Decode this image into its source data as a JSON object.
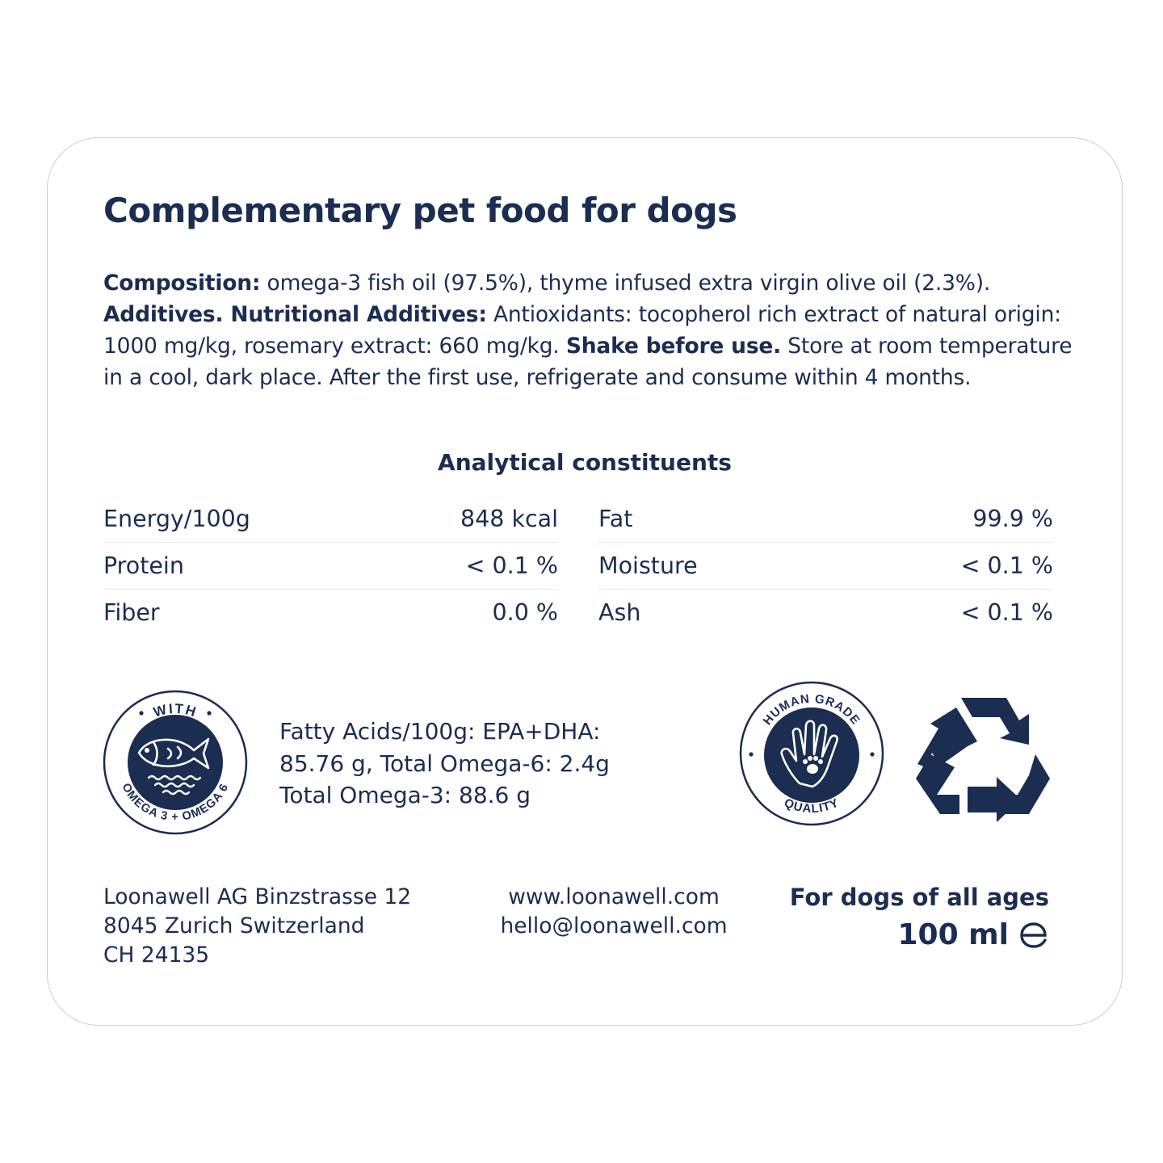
{
  "title": "Complementary pet food for dogs",
  "composition": {
    "label": "Composition:",
    "text": " omega-3 fish oil (97.5%), thyme infused extra virgin olive oil (2.3%).",
    "additives_label": "Additives. Nutritional Additives:",
    "additives_text": " Antioxidants: tocopherol rich extract  of natural origin: 1000 mg/kg, rosemary extract: 660 mg/kg. ",
    "shake_label": "Shake before use.",
    "storage_text": " Store at room temperature in a cool, dark place. After the first use, refrigerate and consume within 4 months."
  },
  "analytical": {
    "title": "Analytical constituents",
    "left": [
      {
        "name": "Energy/100g",
        "value": "848 kcal"
      },
      {
        "name": "Protein",
        "value": "< 0.1 %"
      },
      {
        "name": "Fiber",
        "value": "0.0 %"
      }
    ],
    "right": [
      {
        "name": "Fat",
        "value": "99.9 %"
      },
      {
        "name": "Moisture",
        "value": "< 0.1 %"
      },
      {
        "name": "Ash",
        "value": "< 0.1 %"
      }
    ]
  },
  "badges": {
    "omega_top": "WITH",
    "omega_bottom": "OMEGA 3 + OMEGA 6",
    "human_top": "HUMAN GRADE",
    "human_bottom": "QUALITY",
    "omega_icon": "fish-icon",
    "human_icon": "hand-paw-icon",
    "recycle_icon": "recycle-icon"
  },
  "fatty_acids": {
    "line1": "Fatty Acids/100g:  EPA+DHA:",
    "line2": "85.76 g, Total Omega-6: 2.4g",
    "line3": "Total Omega-3: 88.6 g"
  },
  "address": {
    "line1": "Loonawell AG Binzstrasse 12",
    "line2": "8045 Zurich Switzerland",
    "line3": "CH 24135"
  },
  "contact": {
    "website": "www.loonawell.com",
    "email": "hello@loonawell.com"
  },
  "product": {
    "ages": "For dogs of all ages",
    "volume": "100 ml",
    "estimated_sign": "℮"
  },
  "colors": {
    "navy": "#1b2d50",
    "border": "#c8cdd6",
    "divider": "#e6e8ec"
  }
}
